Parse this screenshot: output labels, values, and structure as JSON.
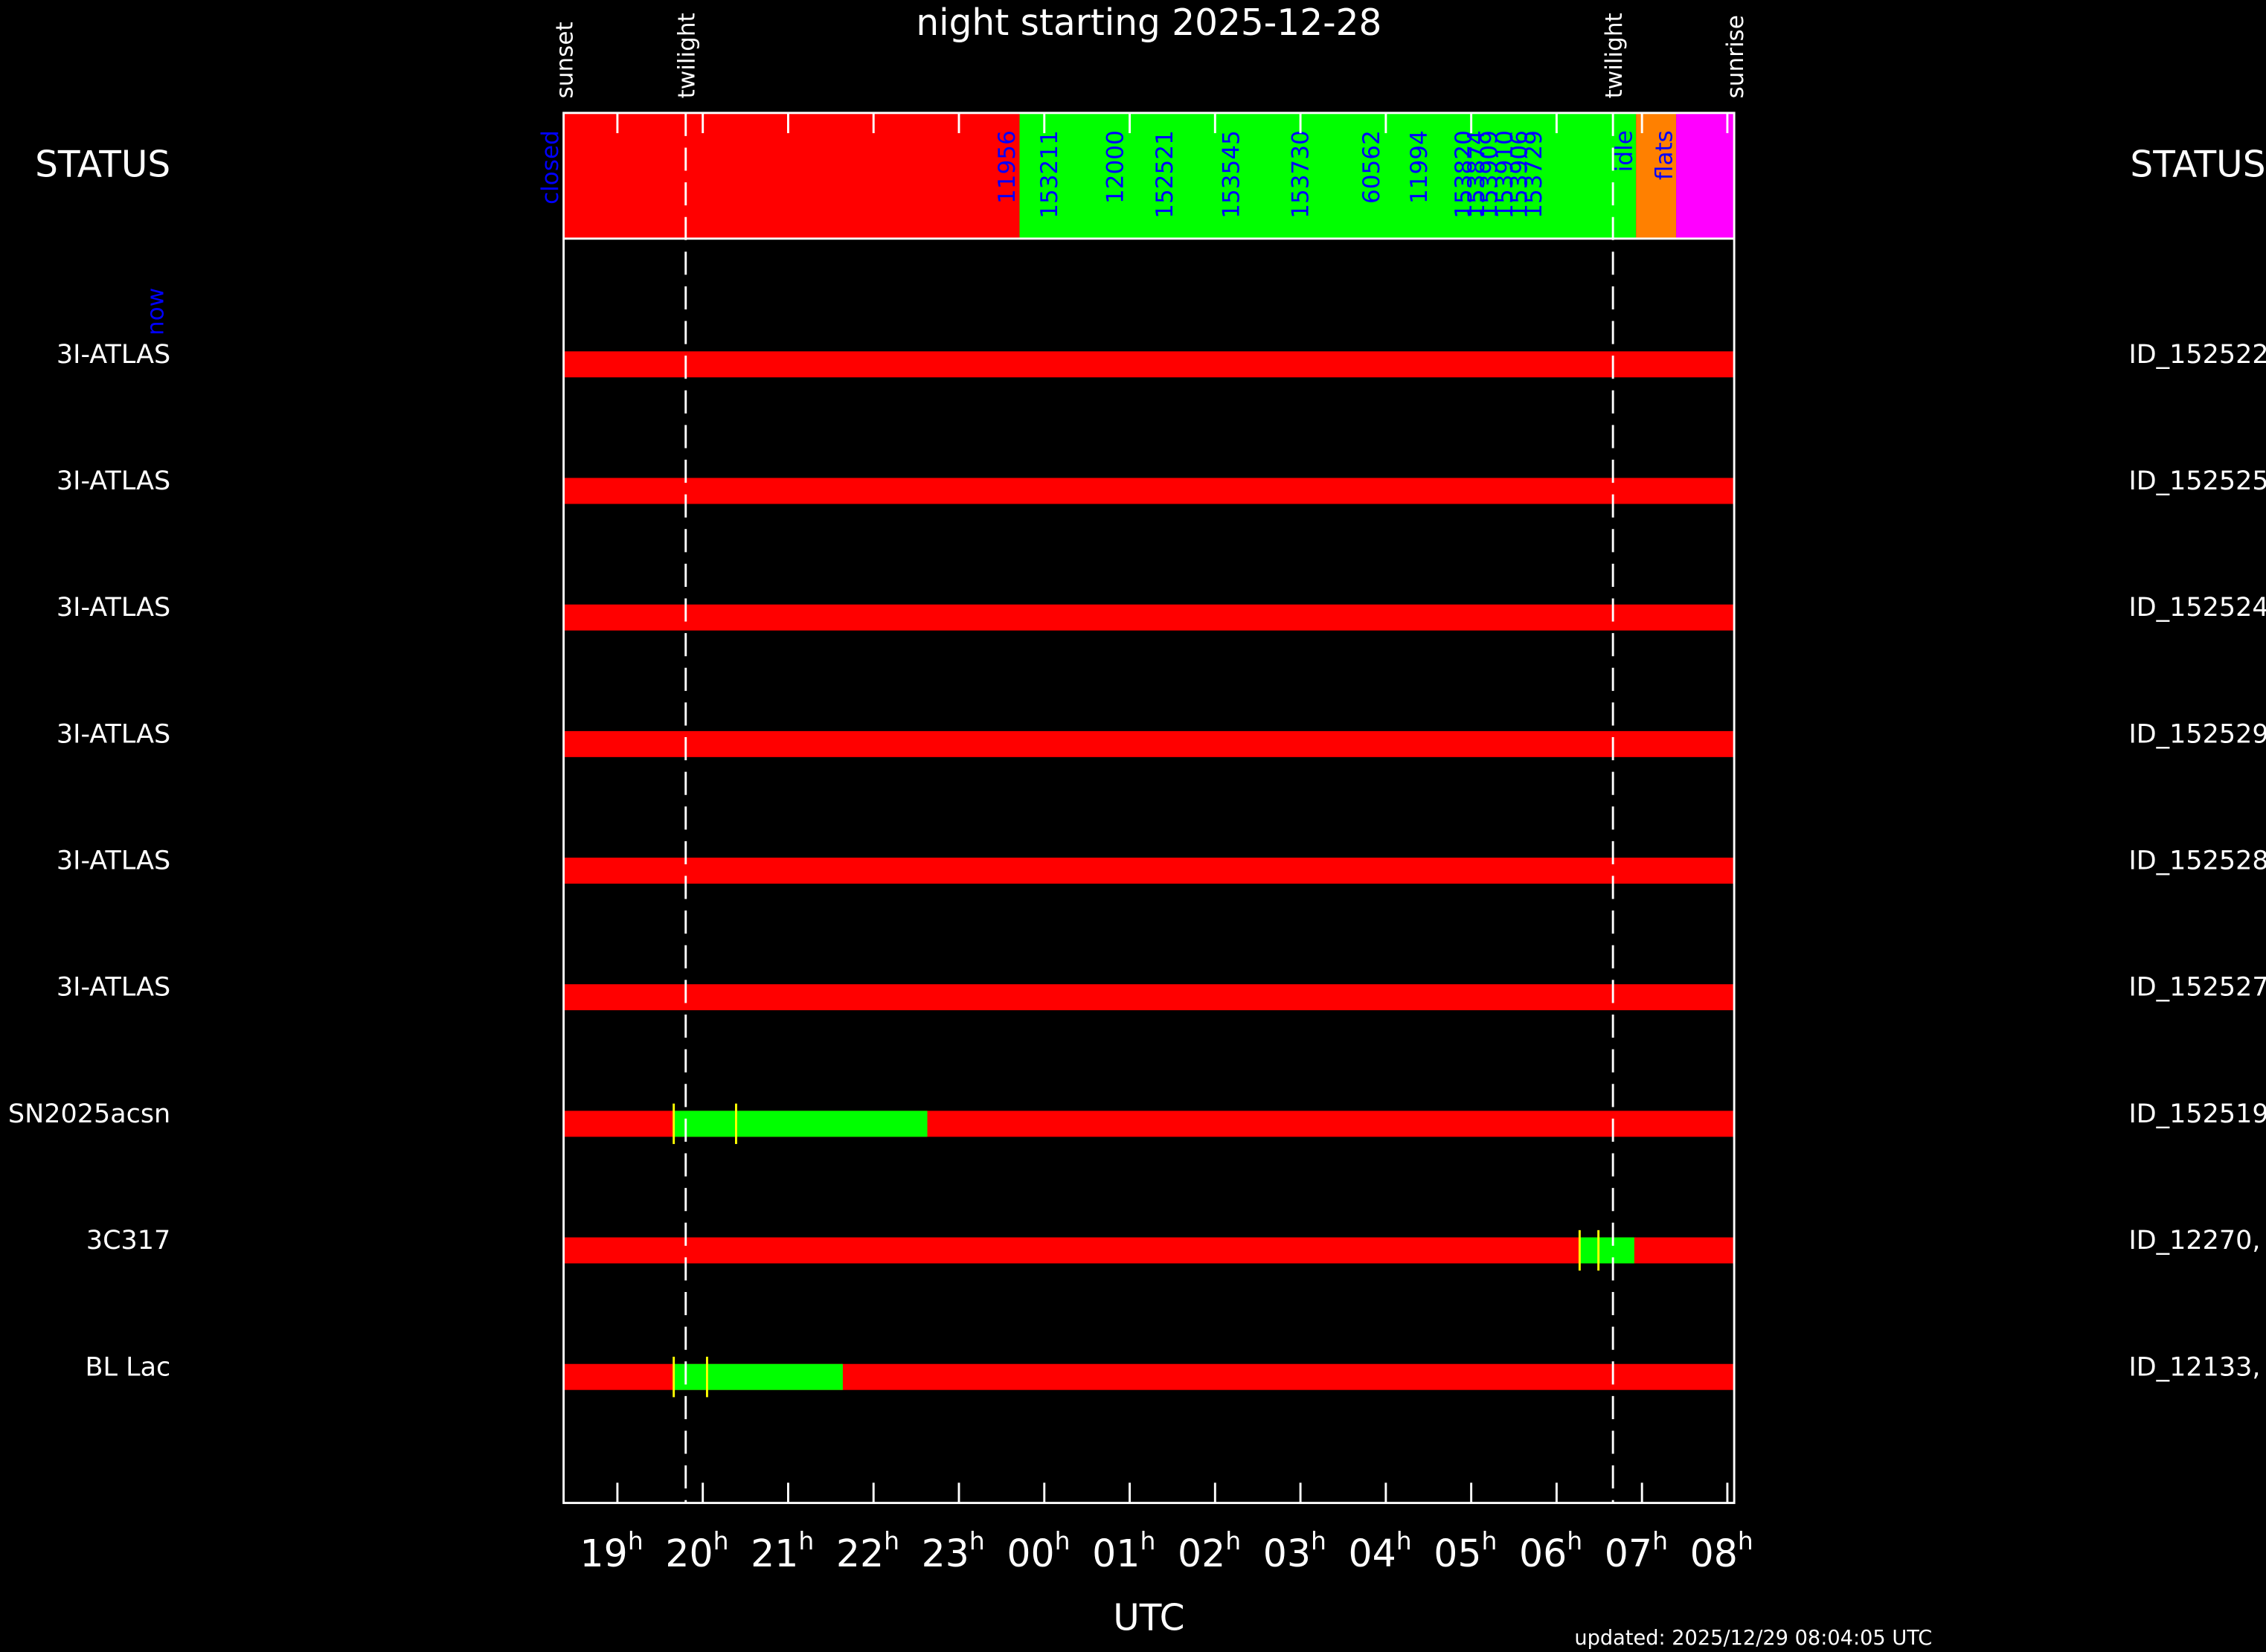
{
  "chart_data": {
    "type": "timeline",
    "title": "night starting 2025-12-28",
    "xlabel": "UTC",
    "updated": "updated: 2025/12/29 08:04:05 UTC",
    "status_label": "STATUS",
    "now_label": "now",
    "xlim": [
      18.37,
      32.08
    ],
    "xticks": [
      19,
      20,
      21,
      22,
      23,
      {
        "value": 24,
        "label": "00"
      },
      {
        "value": 25,
        "label": "01"
      },
      {
        "value": 26,
        "label": "02"
      },
      {
        "value": 27,
        "label": "03"
      },
      {
        "value": 28,
        "label": "04"
      },
      {
        "value": 29,
        "label": "05"
      },
      {
        "value": 30,
        "label": "06"
      },
      {
        "value": 31,
        "label": "07"
      },
      {
        "value": 32,
        "label": "08"
      }
    ],
    "tick_unit": "h",
    "events": [
      {
        "name": "sunset",
        "time": 18.37,
        "line": false
      },
      {
        "name": "twilight",
        "time": 19.8,
        "line": true
      },
      {
        "name": "twilight",
        "time": 30.66,
        "line": true
      },
      {
        "name": "sunrise",
        "time": 32.08,
        "line": false
      }
    ],
    "status_segments": [
      {
        "start": 18.37,
        "end": 23.71,
        "color": "#ff0000"
      },
      {
        "start": 23.71,
        "end": 30.93,
        "color": "#00ff00"
      },
      {
        "start": 30.93,
        "end": 31.4,
        "color": "#ff8000"
      },
      {
        "start": 31.4,
        "end": 32.08,
        "color": "#ff00ff"
      }
    ],
    "status_labels": [
      {
        "label": "closed",
        "time": 18.2
      },
      {
        "label": "11956",
        "time": 23.55
      },
      {
        "label": "153211",
        "time": 24.05
      },
      {
        "label": "12000",
        "time": 24.82
      },
      {
        "label": "152521",
        "time": 25.4
      },
      {
        "label": "153545",
        "time": 26.18
      },
      {
        "label": "153730",
        "time": 26.99
      },
      {
        "label": "60562",
        "time": 27.82
      },
      {
        "label": "11994",
        "time": 28.38
      },
      {
        "label": "153820",
        "time": 28.9
      },
      {
        "label": "153874",
        "time": 29.05
      },
      {
        "label": "153909",
        "time": 29.2
      },
      {
        "label": "153910",
        "time": 29.38
      },
      {
        "label": "153906",
        "time": 29.55
      },
      {
        "label": "153729",
        "time": 29.72
      },
      {
        "label": "idle",
        "time": 30.78
      },
      {
        "label": "flats",
        "time": 31.25
      }
    ],
    "label_color": "#0000ff",
    "bar_color": "#ff0000",
    "window_color": "#00ff00",
    "marker_color": "#ffff00",
    "rows": [
      {
        "name": "3I-ATLAS",
        "id": "ID_152522",
        "windows": [],
        "markers": []
      },
      {
        "name": "3I-ATLAS",
        "id": "ID_152525",
        "windows": [],
        "markers": []
      },
      {
        "name": "3I-ATLAS",
        "id": "ID_152524",
        "windows": [],
        "markers": []
      },
      {
        "name": "3I-ATLAS",
        "id": "ID_152529",
        "windows": [],
        "markers": []
      },
      {
        "name": "3I-ATLAS",
        "id": "ID_152528",
        "windows": [],
        "markers": []
      },
      {
        "name": "3I-ATLAS",
        "id": "ID_152527",
        "windows": [],
        "markers": []
      },
      {
        "name": "SN2025acsn",
        "id": "ID_152519",
        "windows": [
          [
            19.66,
            22.63
          ]
        ],
        "markers": [
          19.66,
          20.39
        ]
      },
      {
        "name": "3C317",
        "id": "ID_12270,",
        "windows": [
          [
            30.27,
            30.91
          ]
        ],
        "markers": [
          30.27,
          30.49
        ]
      },
      {
        "name": "BL Lac",
        "id": "ID_12133,",
        "windows": [
          [
            19.66,
            21.64
          ]
        ],
        "markers": [
          19.66,
          20.05
        ]
      }
    ]
  }
}
